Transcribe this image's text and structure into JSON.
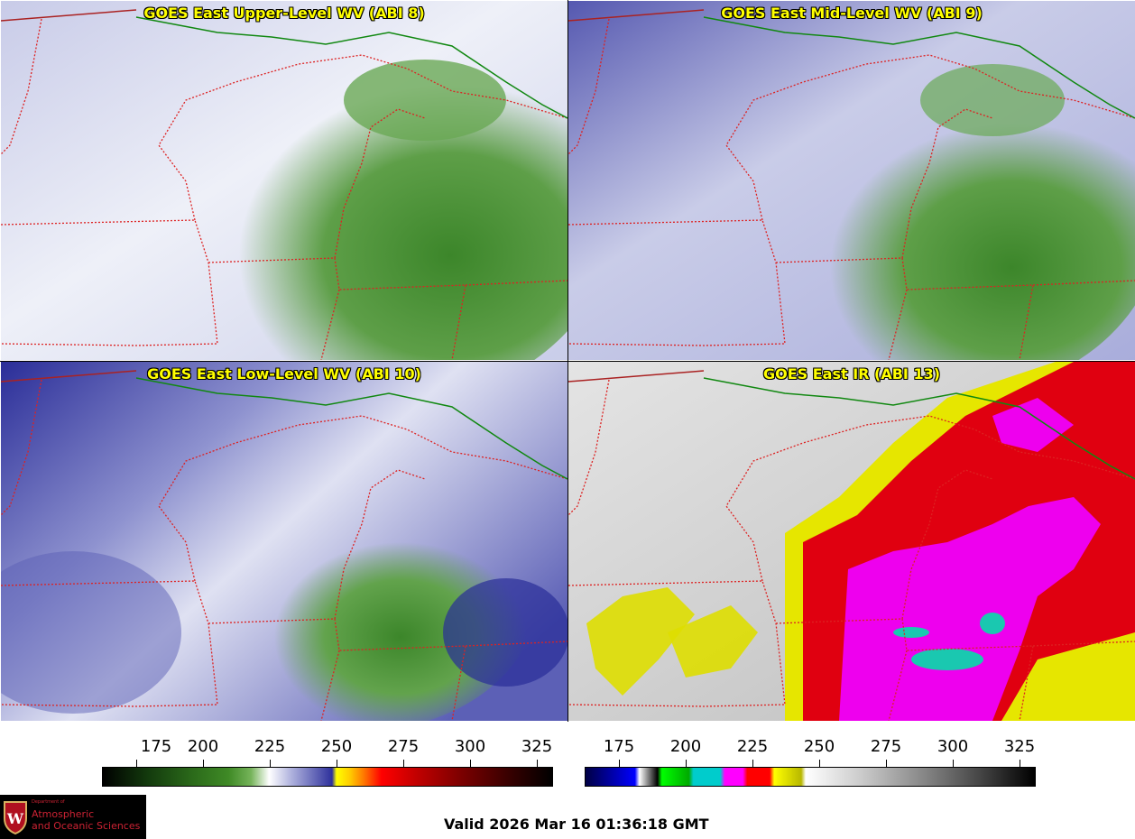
{
  "panels": [
    {
      "title": "GOES East Upper-Level WV (ABI 8)",
      "scheme": "wv-upper"
    },
    {
      "title": "GOES East Mid-Level WV (ABI 9)",
      "scheme": "wv-mid"
    },
    {
      "title": "GOES East Low-Level WV (ABI 10)",
      "scheme": "wv-low"
    },
    {
      "title": "GOES East IR (ABI 13)",
      "scheme": "ir"
    }
  ],
  "colorbars": {
    "left": {
      "ticks": [
        "175",
        "200",
        "225",
        "250",
        "275",
        "300",
        "325"
      ]
    },
    "right": {
      "ticks": [
        "175",
        "200",
        "225",
        "250",
        "275",
        "300",
        "325"
      ]
    }
  },
  "footer": {
    "valid_text": "Valid 2026 Mar 16 01:36:18 GMT",
    "logo": {
      "small": "Department of",
      "line1": "Atmospheric",
      "line2": "and Oceanic Sciences"
    }
  },
  "colors": {
    "title_text": "#ffff00",
    "border_red": "#dd2222",
    "border_green": "#118811",
    "logo_red": "#cc2233"
  }
}
